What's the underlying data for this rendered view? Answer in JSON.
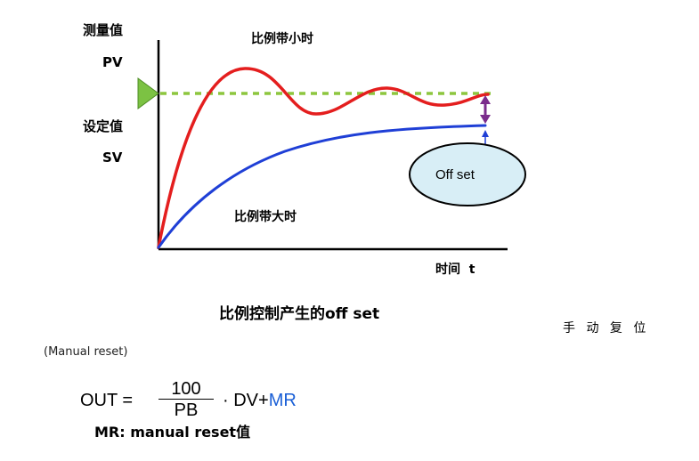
{
  "diagram": {
    "y_label_measured": "测量值",
    "y_label_pv": "PV",
    "y_label_setpoint": "设定值",
    "y_label_sv": "SV",
    "x_label": "时间  t",
    "curve_small_pb_label": "比例带小时",
    "curve_large_pb_label": "比例带大时",
    "offset_label": "Off set",
    "caption": "比例控制产生的off set",
    "colors": {
      "small_pb_curve": "#e41e1e",
      "large_pb_curve": "#1f3fd6",
      "setpoint_line": "#8dc63f",
      "setpoint_marker": "#7cc243",
      "offset_arrow": "#7b2c8c",
      "offset_ellipse": "#d8eef6"
    }
  },
  "side_label": "手 动 复 位",
  "manual_reset_label": "(Manual reset)",
  "formula": {
    "lhs": "OUT =",
    "numerator": "100",
    "denominator": "PB",
    "rhs": "· DV+",
    "mr": "MR"
  },
  "mr_note": "MR: manual reset值"
}
